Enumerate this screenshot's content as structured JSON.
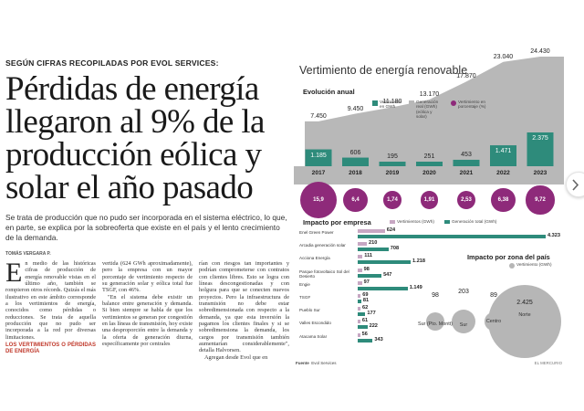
{
  "article": {
    "kicker": "SEGÚN CIFRAS RECOPILADAS POR EVOL SERVICES:",
    "headline": "Pérdidas de energía llegaron al 9% de la producción eólica y solar el año pasado",
    "lead": "Se trata de producción que no pudo ser incorporada en el sistema eléctrico, lo que, en parte, se explica por la sobreoferta que existe en el país y el lento crecimiento de la demanda.",
    "byline": "TOMÁS VERGARA P.",
    "dropcap": "E",
    "col1_p1": "n medio de las históricas cifras de producción de energía renovable vistas en el último año, también se rompieron otros récords. Quizás el más ilustrativo en este ámbito corresponde a los vertimientos de energía, conocidos como pérdidas o reducciones. Se trata de aquella producción que no pudo ser incorporada a la red por diversas limitaciones.",
    "col2_p1": "vertida (624 GWh aproximadamente), pero la empresa con un mayor porcentaje de vertimiento respecto de su generación solar y eólica total fue TSGF, con 46%.",
    "col2_p2": "\"En el sistema debe existir un balance entre generación y demanda. Si bien siempre se habla de que los vertimientos se generan por congestión en las líneas de transmisión, hoy existe una desproporción entre la demanda y la oferta de generación diurna, específicamente por centrales",
    "col3_p1": "rían con riesgos tan importantes y podrían comprometerse con contratos con clientes libres. Esto se logra con líneas descongestionadas y con holgura para que se conecten nuevos proyectos. Pero la infraestructura de transmisión no debe estar sobredimensionada con respecto a la demanda, ya que esta inversión la pagamos los clientes finales y si se sobredimensiona la demanda, los cargos por transmisión también aumentarían considerablemente\", detalla Halvorsen.",
    "col3_p2": "Agregan desde Evol que en",
    "subhead": "LOS VERTIMIENTOS O PÉRDIDAS DE ENERGÍA"
  },
  "infographic": {
    "title": "Vertimiento de energía renovable",
    "annual": {
      "title": "Evolución anual",
      "legend": {
        "vert": "Vertimiento en GWh",
        "gen": "Generación real (GWh) (eólica y solar)",
        "pct": "Vertimiento en porcentaje (%)"
      }
    },
    "empresa": {
      "title": "Impacto por empresa",
      "legend_vert": "Vertimientos (GWh)",
      "legend_gen": "Generación total (GWh)"
    },
    "zona": {
      "title": "Impacto por zona del país",
      "legend": "Vertimiento (GWh)"
    },
    "source_label": "Fuente",
    "source": "Evol Services",
    "credit": "EL MERCURIO"
  },
  "colors": {
    "vert": "#2e8b7b",
    "gen_area": "#b8b8b8",
    "pct": "#8e2a7a",
    "empresa_vert": "#c7a7c3",
    "empresa_gen": "#2e8b7b"
  },
  "chart_data": [
    {
      "type": "bar",
      "title": "Evolución anual",
      "categories": [
        "2017",
        "2018",
        "2019",
        "2020",
        "2021",
        "2022",
        "2023"
      ],
      "series": [
        {
          "name": "Vertimiento en GWh",
          "values": [
            1185,
            606,
            195,
            251,
            453,
            1471,
            2375
          ]
        },
        {
          "name": "Generación real (GWh) (eólica y solar)",
          "values": [
            7450,
            9450,
            11180,
            13170,
            17870,
            23040,
            24430
          ]
        },
        {
          "name": "Vertimiento en porcentaje (%)",
          "values": [
            15.9,
            6.4,
            1.74,
            1.91,
            2.53,
            6.38,
            9.72
          ]
        }
      ],
      "labels": {
        "vert": [
          "1.185",
          "606",
          "195",
          "251",
          "453",
          "1.471",
          "2.375"
        ],
        "gen": [
          "7.450",
          "9.450",
          "11.180",
          "13.170",
          "17.870",
          "23.040",
          "24.430"
        ],
        "pct": [
          "15,9",
          "6,4",
          "1,74",
          "1,91",
          "2,53",
          "6,38",
          "9,72"
        ]
      }
    },
    {
      "type": "bar",
      "title": "Impacto por empresa",
      "categories": [
        "Enel Green Power",
        "Arcadia generación solar",
        "Acciona Energía",
        "Parque fotovoltaico Sol del Desierto",
        "Engie",
        "TSGF",
        "Pueblo Sur",
        "Valles Escondido",
        "Atacama Solar"
      ],
      "series": [
        {
          "name": "Vertimientos (GWh)",
          "values": [
            624,
            210,
            111,
            98,
            97,
            69,
            62,
            61,
            56
          ]
        },
        {
          "name": "Generación total (GWh)",
          "values": [
            4323,
            708,
            1218,
            547,
            1149,
            81,
            177,
            222,
            343
          ]
        }
      ],
      "labels": {
        "vert": [
          "624",
          "210",
          "111",
          "98",
          "97",
          "69",
          "62",
          "61",
          "56"
        ],
        "gen": [
          "4.323",
          "708",
          "1.218",
          "547",
          "1.149",
          "81",
          "177",
          "222",
          "343"
        ]
      }
    },
    {
      "type": "scatter",
      "title": "Impacto por zona del país",
      "categories": [
        "Sur (Pto. Montt)",
        "Sur",
        "Centro",
        "Norte"
      ],
      "series": [
        {
          "name": "Vertimiento (GWh)",
          "values": [
            98,
            203,
            89,
            2425
          ]
        }
      ],
      "labels": [
        "98",
        "203",
        "89",
        "2.425"
      ]
    }
  ]
}
